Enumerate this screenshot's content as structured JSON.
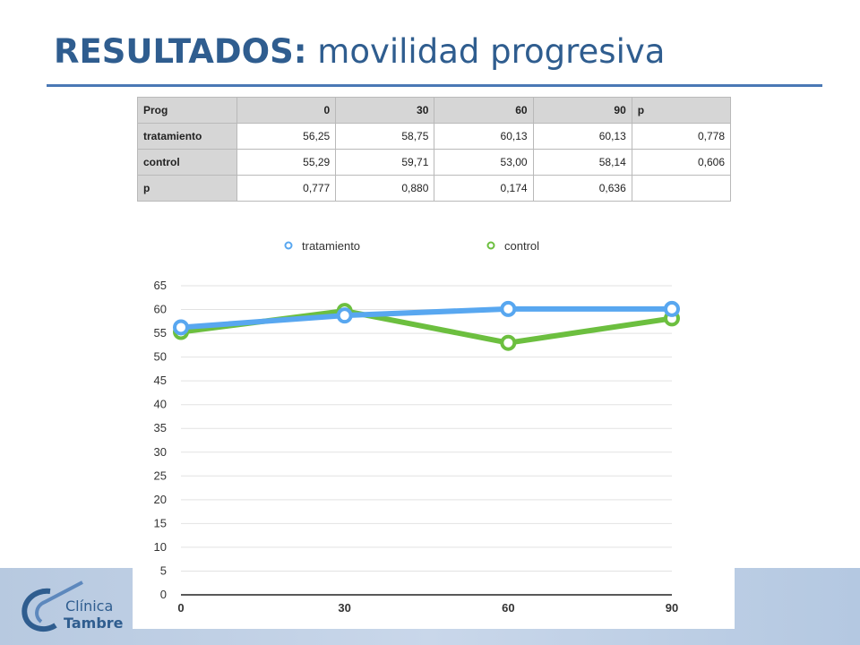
{
  "slide": {
    "title_bold": "RESULTADOS:",
    "title_rest": "movilidad progresiva",
    "logo_line1": "Clínica",
    "logo_line2": "Tambre",
    "accent": "#2f5d8f"
  },
  "table": {
    "header": [
      "Prog",
      "0",
      "30",
      "60",
      "90",
      "p"
    ],
    "rows": [
      [
        "tratamiento",
        "56,25",
        "58,75",
        "60,13",
        "60,13",
        "0,778"
      ],
      [
        "control",
        "55,29",
        "59,71",
        "53,00",
        "58,14",
        "0,606"
      ],
      [
        "p",
        "0,777",
        "0,880",
        "0,174",
        "0,636",
        ""
      ]
    ]
  },
  "chart_data": {
    "type": "line",
    "x": [
      0,
      30,
      60,
      90
    ],
    "ylim": [
      0,
      65
    ],
    "yticks": [
      0,
      5,
      10,
      15,
      20,
      25,
      30,
      35,
      40,
      45,
      50,
      55,
      60,
      65
    ],
    "legend_position": "top",
    "grid": true,
    "series": [
      {
        "name": "tratamiento",
        "color": "#58a7f0",
        "values": [
          56.25,
          58.75,
          60.13,
          60.13
        ]
      },
      {
        "name": "control",
        "color": "#6cbf3f",
        "values": [
          55.29,
          59.71,
          53.0,
          58.14
        ]
      }
    ]
  }
}
